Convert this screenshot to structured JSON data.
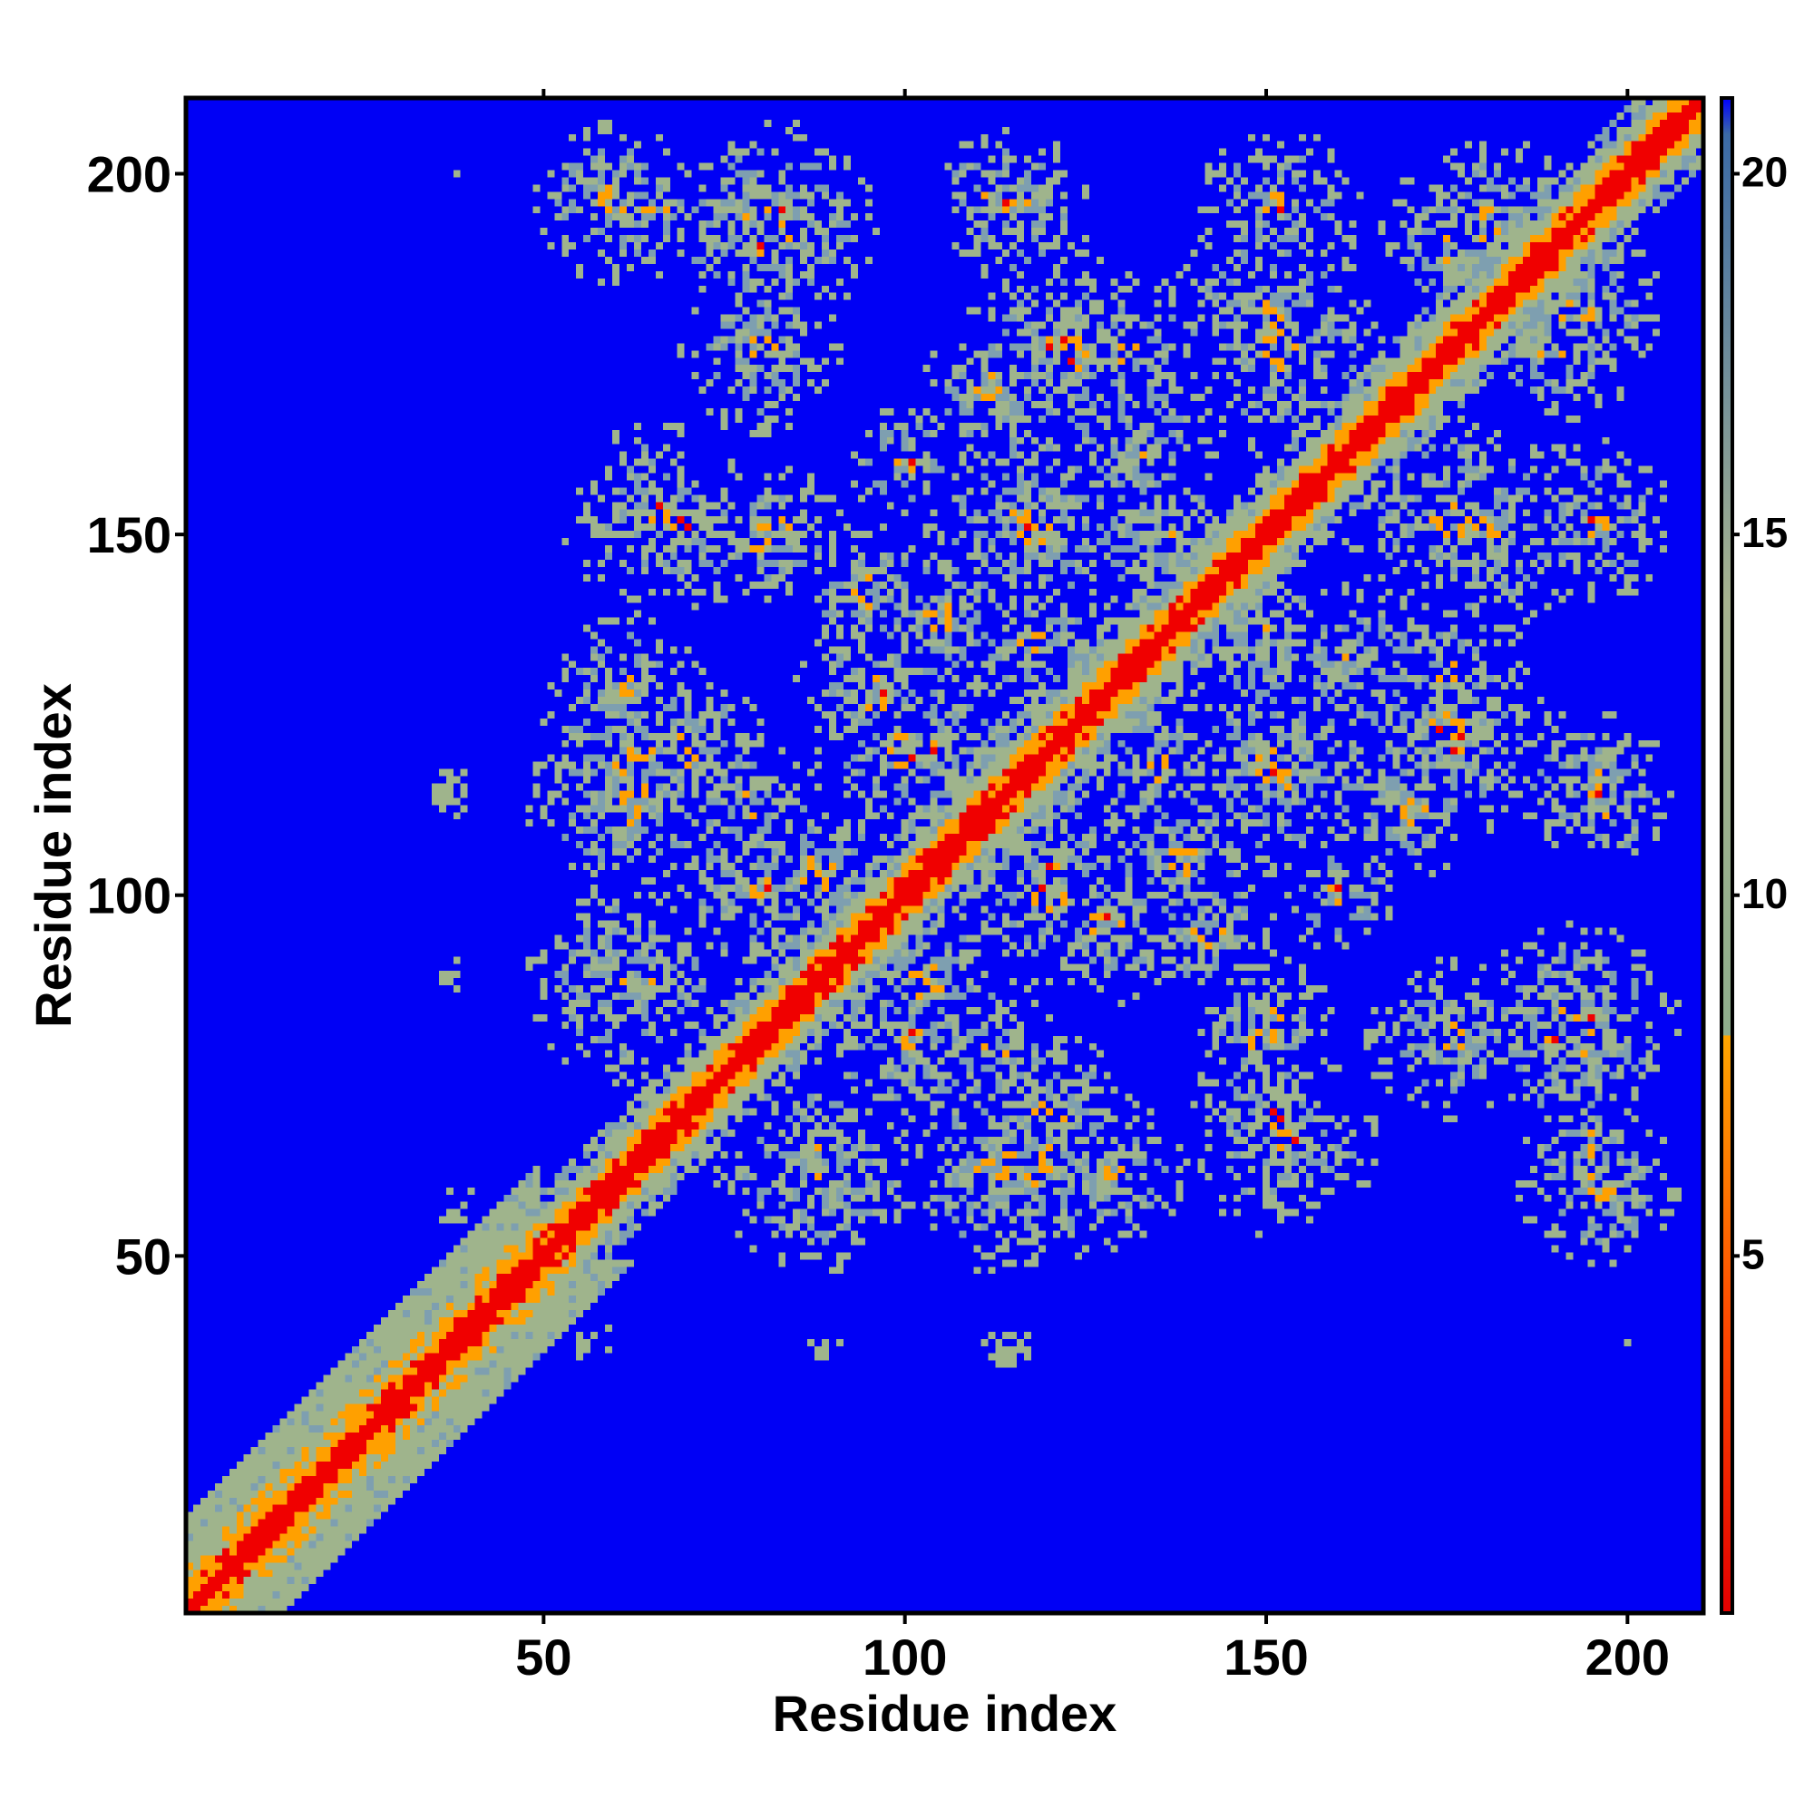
{
  "chart_data": {
    "type": "heatmap",
    "title": "",
    "xlabel": "Residue index",
    "ylabel": "Residue index",
    "xlim": [
      1,
      210
    ],
    "ylim": [
      1,
      210
    ],
    "x_ticks": [
      50,
      100,
      150,
      200
    ],
    "y_ticks": [
      50,
      100,
      150,
      200
    ],
    "colorbar": {
      "ticks": [
        5,
        10,
        15,
        20
      ],
      "range": [
        0,
        21
      ],
      "stops": [
        {
          "value": 0,
          "color": "#e30000"
        },
        {
          "value": 4,
          "color": "#ff4a00"
        },
        {
          "value": 8,
          "color": "#ffa500"
        },
        {
          "value": 8.01,
          "color": "#8fae8c"
        },
        {
          "value": 14,
          "color": "#a6b28e"
        },
        {
          "value": 20.5,
          "color": "#3b6aa6"
        },
        {
          "value": 21,
          "color": "#0000ff"
        }
      ]
    },
    "colors": {
      "background": "#0000f5",
      "red": "#f00000",
      "orange": "#ffa000",
      "sage": "#9fb48c",
      "steel": "#7e9fb0"
    },
    "diagonal_band_width": 2.5,
    "contact_clusters": [
      {
        "x": 63,
        "y": 118,
        "r": 9
      },
      {
        "x": 62,
        "y": 88,
        "r": 8
      },
      {
        "x": 62,
        "y": 128,
        "r": 7
      },
      {
        "x": 65,
        "y": 153,
        "r": 8
      },
      {
        "x": 80,
        "y": 192,
        "r": 9
      },
      {
        "x": 60,
        "y": 196,
        "r": 7
      },
      {
        "x": 113,
        "y": 197,
        "r": 6
      },
      {
        "x": 88,
        "y": 62,
        "r": 9
      },
      {
        "x": 113,
        "y": 62,
        "r": 9
      },
      {
        "x": 120,
        "y": 70,
        "r": 7
      },
      {
        "x": 118,
        "y": 150,
        "r": 9
      },
      {
        "x": 122,
        "y": 175,
        "r": 9
      },
      {
        "x": 120,
        "y": 105,
        "r": 8
      },
      {
        "x": 128,
        "y": 96,
        "r": 7
      },
      {
        "x": 132,
        "y": 162,
        "r": 7
      },
      {
        "x": 152,
        "y": 118,
        "r": 10
      },
      {
        "x": 150,
        "y": 180,
        "r": 9
      },
      {
        "x": 150,
        "y": 196,
        "r": 6
      },
      {
        "x": 150,
        "y": 135,
        "r": 7
      },
      {
        "x": 151,
        "y": 70,
        "r": 7
      },
      {
        "x": 151,
        "y": 82,
        "r": 6
      },
      {
        "x": 175,
        "y": 152,
        "r": 9
      },
      {
        "x": 175,
        "y": 130,
        "r": 8
      },
      {
        "x": 180,
        "y": 193,
        "r": 8
      },
      {
        "x": 175,
        "y": 80,
        "r": 7
      },
      {
        "x": 193,
        "y": 82,
        "r": 9
      },
      {
        "x": 195,
        "y": 115,
        "r": 7
      },
      {
        "x": 195,
        "y": 152,
        "r": 7
      },
      {
        "x": 195,
        "y": 65,
        "r": 6
      },
      {
        "x": 190,
        "y": 175,
        "r": 6
      },
      {
        "x": 100,
        "y": 80,
        "r": 8
      },
      {
        "x": 100,
        "y": 120,
        "r": 8
      },
      {
        "x": 105,
        "y": 138,
        "r": 7
      },
      {
        "x": 135,
        "y": 118,
        "r": 7
      },
      {
        "x": 88,
        "y": 103,
        "r": 7
      },
      {
        "x": 78,
        "y": 112,
        "r": 7
      },
      {
        "x": 142,
        "y": 95,
        "r": 6
      },
      {
        "x": 160,
        "y": 100,
        "r": 5
      },
      {
        "x": 170,
        "y": 112,
        "r": 6
      },
      {
        "x": 80,
        "y": 148,
        "r": 5
      }
    ],
    "sparse_specks": [
      {
        "x": 37,
        "y": 115,
        "r": 3
      },
      {
        "x": 37,
        "y": 90,
        "r": 2
      },
      {
        "x": 113,
        "y": 37,
        "r": 3
      },
      {
        "x": 57,
        "y": 38,
        "r": 3
      },
      {
        "x": 88,
        "y": 37,
        "r": 2
      },
      {
        "x": 200,
        "y": 38,
        "r": 1
      },
      {
        "x": 37,
        "y": 200,
        "r": 1
      }
    ]
  }
}
